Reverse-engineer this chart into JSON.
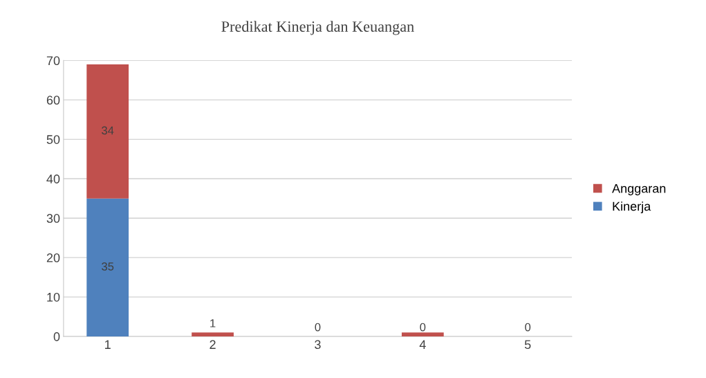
{
  "chart_data": {
    "type": "bar",
    "title": "Predikat Kinerja dan Keuangan",
    "stacked": true,
    "categories": [
      "1",
      "2",
      "3",
      "4",
      "5"
    ],
    "series": [
      {
        "name": "Kinerja",
        "color": "#4f81bd",
        "values": [
          35,
          0,
          0,
          0,
          0
        ],
        "value_labels": [
          "35",
          null,
          null,
          "0",
          null
        ]
      },
      {
        "name": "Anggaran",
        "color": "#c0504d",
        "values": [
          34,
          1,
          0,
          1,
          0
        ],
        "value_labels": [
          "34",
          "1",
          "0",
          null,
          "0"
        ]
      }
    ],
    "ylim": [
      0,
      70
    ],
    "yticks": [
      0,
      10,
      20,
      30,
      40,
      50,
      60,
      70
    ],
    "grid": "y",
    "legend": "right"
  }
}
